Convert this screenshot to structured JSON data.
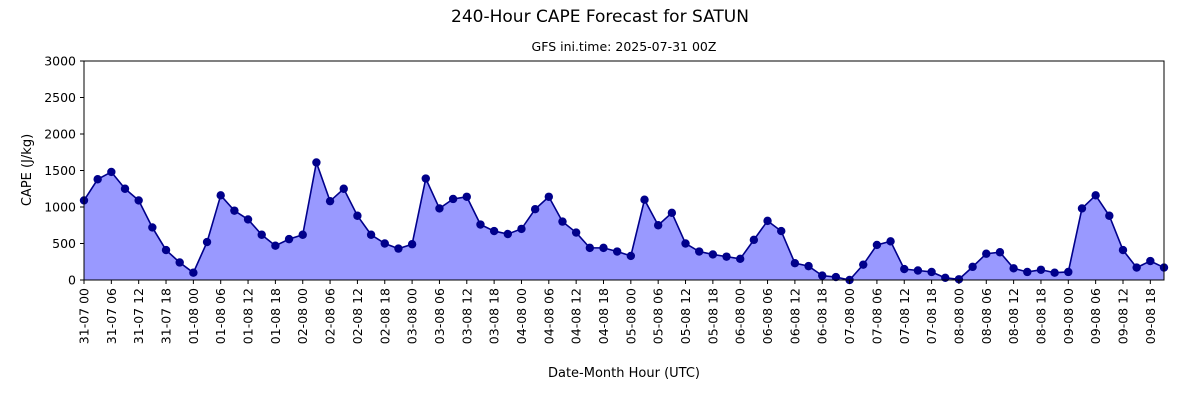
{
  "chart_data": {
    "type": "area",
    "title": "240-Hour CAPE Forecast for SATUN",
    "subtitle": "GFS ini.time: 2025-07-31 00Z",
    "xlabel": "Date-Month Hour (UTC)",
    "ylabel": "CAPE (J/kg)",
    "ylim": [
      0,
      3000
    ],
    "yticks": [
      "0",
      "500",
      "1000",
      "1500",
      "2000",
      "2500",
      "3000"
    ],
    "xticks": [
      "31-07 00",
      "31-07 06",
      "31-07 12",
      "31-07 18",
      "01-08 00",
      "01-08 06",
      "01-08 12",
      "01-08 18",
      "02-08 00",
      "02-08 06",
      "02-08 12",
      "02-08 18",
      "03-08 00",
      "03-08 06",
      "03-08 12",
      "03-08 18",
      "04-08 00",
      "04-08 06",
      "04-08 12",
      "04-08 18",
      "05-08 00",
      "05-08 06",
      "05-08 12",
      "05-08 18",
      "06-08 00",
      "06-08 06",
      "06-08 12",
      "06-08 18",
      "07-08 00",
      "07-08 06",
      "07-08 12",
      "07-08 18",
      "08-08 00",
      "08-08 06",
      "08-08 12",
      "08-08 18",
      "09-08 00",
      "09-08 06",
      "09-08 12",
      "09-08 18"
    ],
    "x_start": "2025-07-31 00Z",
    "x_interval_hours": 3,
    "grid": false,
    "line_color": "#00008b",
    "fill_color": "#9999ff",
    "values": [
      1090,
      1380,
      1480,
      1250,
      1090,
      720,
      410,
      240,
      100,
      520,
      1160,
      950,
      830,
      620,
      470,
      560,
      620,
      1610,
      1080,
      1250,
      880,
      620,
      500,
      430,
      490,
      1390,
      980,
      1110,
      1140,
      760,
      670,
      630,
      700,
      970,
      1140,
      800,
      650,
      440,
      440,
      390,
      330,
      1100,
      750,
      920,
      500,
      390,
      350,
      320,
      290,
      550,
      810,
      670,
      230,
      190,
      60,
      40,
      0,
      210,
      480,
      530,
      150,
      130,
      110,
      30,
      10,
      180,
      360,
      380,
      160,
      110,
      140,
      100,
      110,
      980,
      1160,
      880,
      410,
      170,
      260,
      170
    ]
  }
}
